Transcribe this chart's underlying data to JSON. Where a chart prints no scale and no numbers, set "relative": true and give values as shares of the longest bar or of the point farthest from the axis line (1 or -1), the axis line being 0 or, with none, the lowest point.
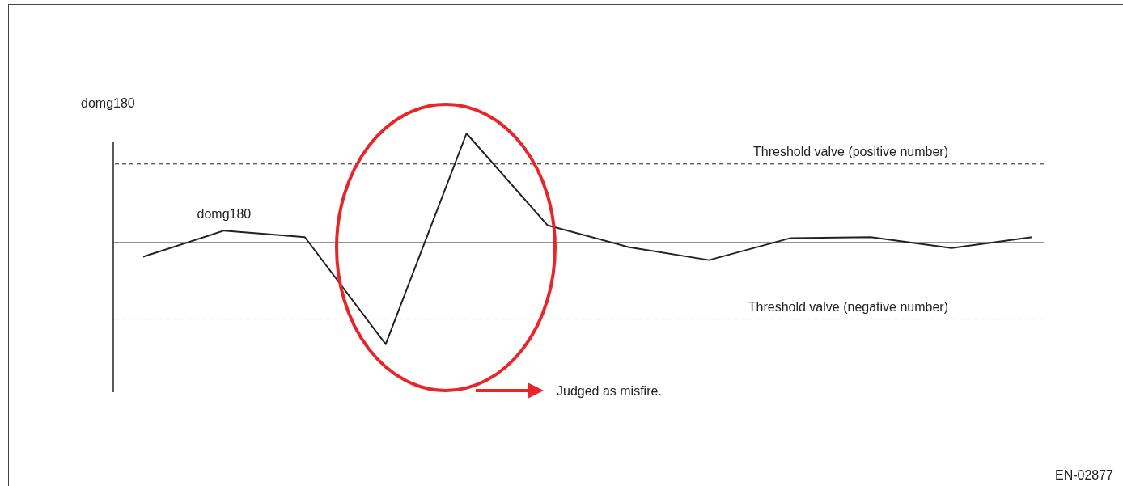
{
  "chart_data": {
    "type": "line",
    "relative": true,
    "ylabel": "domg180",
    "categories": [
      null,
      null,
      null,
      null,
      null,
      null,
      null,
      null,
      null,
      null,
      null,
      null
    ],
    "series": [
      {
        "name": "domg180",
        "color": "#222222",
        "values": [
          -0.13,
          0.11,
          0.05,
          -0.93,
          1,
          0.16,
          -0.04,
          -0.16,
          0.04,
          0.05,
          -0.05,
          0.05
        ]
      }
    ],
    "ref_lines": [
      {
        "axis": "y",
        "value": 0.72,
        "label": "Threshold valve (positive number)",
        "line_style": "dashed"
      },
      {
        "axis": "y",
        "value": -0.7,
        "label": "Threshold valve (negative number)",
        "line_style": "dashed"
      }
    ],
    "annotations": [
      "Judged as misfire.",
      "EN-02877"
    ]
  }
}
